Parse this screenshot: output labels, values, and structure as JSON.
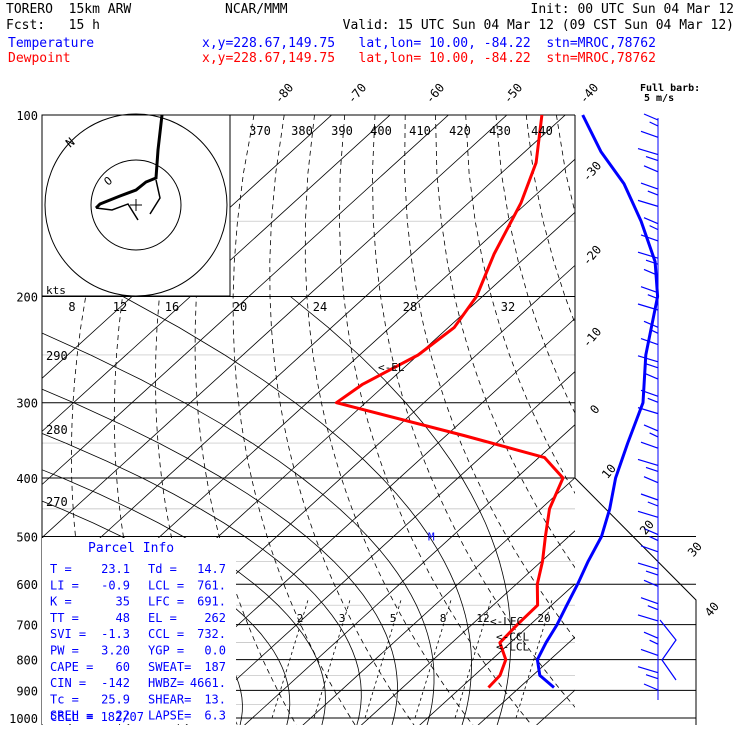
{
  "header": {
    "model": "TORERO  15km ARW",
    "org": "NCAR/MMM",
    "init": "Init: 00 UTC Sun 04 Mar 12",
    "fcst": "Fcst:   15 h",
    "valid": "Valid: 15 UTC Sun 04 Mar 12 (09 CST Sun 04 Mar 12)",
    "temp_label": "Temperature",
    "dew_label": "Dewpoint",
    "loc_line": "x,y=228.67,149.75   lat,lon= 10.00, -84.22  stn=MROC,78762",
    "wind_note_1": "Full barb:",
    "wind_note_2": "5 m/s"
  },
  "colors": {
    "temperature": "#0000ff",
    "dewpoint": "#ff0000",
    "theta": "#000000",
    "background": "#ffffff"
  },
  "chart_data": {
    "type": "line",
    "title": "",
    "xlabel": "",
    "ylabel": "",
    "y_scale": "log-pressure",
    "pressure_levels": [
      "100",
      "200",
      "300",
      "400",
      "500",
      "600",
      "700",
      "800",
      "900",
      "1000"
    ],
    "isotherm_labels": [
      "-80",
      "-70",
      "-60",
      "-50",
      "-40",
      "-30",
      "-20",
      "-10",
      "0",
      "10",
      "20",
      "30",
      "40"
    ],
    "dry_adiabat_labels": [
      "370",
      "380",
      "390",
      "400",
      "410",
      "420",
      "430",
      "440"
    ],
    "theta_e_labels": [
      "290",
      "280",
      "270"
    ],
    "mixing_ratio_labels": [
      "2",
      "3",
      "5",
      "8",
      "12",
      "20"
    ],
    "levels_annot": [
      {
        "text": "<-EL",
        "p": 262
      },
      {
        "text": "<-LFC",
        "p": 691
      },
      {
        "text": "<-CCL",
        "p": 732
      },
      {
        "text": "<-LCL",
        "p": 761
      }
    ],
    "mark_m": "M",
    "series": [
      {
        "name": "Temperature",
        "points": [
          [
            890,
            25.9
          ],
          [
            850,
            21.2
          ],
          [
            800,
            17.8
          ],
          [
            750,
            16.1
          ],
          [
            700,
            14.6
          ],
          [
            650,
            12.6
          ],
          [
            600,
            10.5
          ],
          [
            550,
            8.0
          ],
          [
            500,
            5.6
          ],
          [
            450,
            1.8
          ],
          [
            400,
            -3.0
          ],
          [
            350,
            -7.5
          ],
          [
            300,
            -12.5
          ],
          [
            250,
            -21.0
          ],
          [
            200,
            -30.0
          ],
          [
            175,
            -37.0
          ],
          [
            150,
            -47.0
          ],
          [
            130,
            -57.0
          ],
          [
            115,
            -67.0
          ],
          [
            100,
            -77.0
          ]
        ]
      },
      {
        "name": "Dewpoint",
        "points": [
          [
            890,
            14.7
          ],
          [
            850,
            14.4
          ],
          [
            800,
            12.4
          ],
          [
            750,
            8.2
          ],
          [
            700,
            7.8
          ],
          [
            650,
            7.6
          ],
          [
            600,
            3.6
          ],
          [
            550,
            0.2
          ],
          [
            500,
            -4.0
          ],
          [
            450,
            -8.5
          ],
          [
            400,
            -12.0
          ],
          [
            370,
            -19.0
          ],
          [
            340,
            -37.0
          ],
          [
            300,
            -65.0
          ],
          [
            280,
            -64.0
          ],
          [
            250,
            -60.0
          ],
          [
            225,
            -59.0
          ],
          [
            200,
            -61.0
          ],
          [
            170,
            -66.0
          ],
          [
            140,
            -71.0
          ],
          [
            120,
            -76.0
          ],
          [
            100,
            -84.0
          ]
        ]
      }
    ]
  },
  "hodograph": {
    "units": "kts",
    "ring_labels": [
      "8",
      "12",
      "16",
      "20",
      "24",
      "28",
      "32"
    ],
    "mark_n": "N"
  },
  "parcel": {
    "title": "Parcel Info",
    "rows": [
      [
        "T  =",
        "23.1",
        "Td =",
        "14.7"
      ],
      [
        "LI =",
        "-0.9",
        "LCL =",
        "761."
      ],
      [
        "K  =",
        "35",
        "LFC =",
        "691."
      ],
      [
        "TT =",
        "48",
        "EL  =",
        "262"
      ],
      [
        "SVI =",
        "-1.3",
        "CCL =",
        "732."
      ],
      [
        "PW  =",
        "3.20",
        "YGP =",
        "0.0"
      ],
      [
        "CAPE =",
        "60",
        "SWEAT=",
        "187"
      ],
      [
        "CIN  =",
        "-142",
        "HWBZ=",
        "4661."
      ],
      [
        "Tc  =",
        "25.9",
        "SHEAR=",
        "13."
      ],
      [
        "SREH =",
        "22",
        "LAPSE=",
        "6.3"
      ]
    ],
    "cell": "CELL = 182/07"
  }
}
